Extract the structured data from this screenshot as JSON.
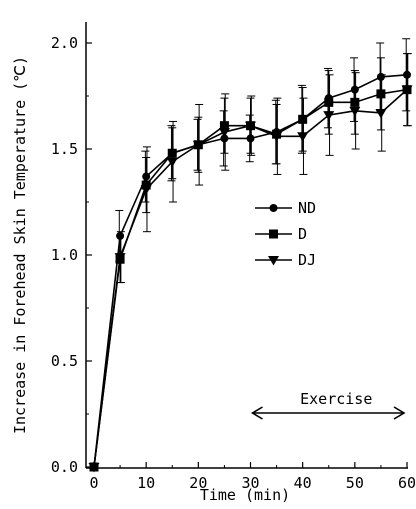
{
  "chart_data": {
    "type": "line",
    "title": "",
    "xlabel": "Time (min)",
    "ylabel": "Increase in Forehead Skin Temperature (℃)",
    "xlim": [
      0,
      60
    ],
    "ylim": [
      0,
      2.1
    ],
    "xticks": [
      "0",
      "10",
      "20",
      "30",
      "40",
      "50",
      "60"
    ],
    "yticks": [
      "0.0",
      "0.5",
      "1.0",
      "1.5",
      "2.0"
    ],
    "x": [
      0,
      5,
      10,
      15,
      20,
      25,
      30,
      35,
      40,
      45,
      50,
      55,
      60
    ],
    "grid": false,
    "legend_position": "center-right",
    "series": [
      {
        "name": "ND",
        "marker": "circle",
        "values": [
          0,
          1.09,
          1.37,
          1.48,
          1.52,
          1.55,
          1.55,
          1.58,
          1.64,
          1.74,
          1.78,
          1.84,
          1.85
        ],
        "errors": [
          0,
          0.12,
          0.12,
          0.13,
          0.12,
          0.13,
          0.11,
          0.15,
          0.16,
          0.14,
          0.15,
          0.16,
          0.17
        ]
      },
      {
        "name": "D",
        "marker": "square",
        "values": [
          0,
          0.98,
          1.33,
          1.48,
          1.52,
          1.61,
          1.61,
          1.57,
          1.64,
          1.72,
          1.72,
          1.76,
          1.78
        ],
        "errors": [
          0,
          0.11,
          0.13,
          0.12,
          0.13,
          0.13,
          0.13,
          0.14,
          0.15,
          0.15,
          0.15,
          0.17,
          0.17
        ]
      },
      {
        "name": "DJ",
        "marker": "triangle-down",
        "values": [
          0,
          0.99,
          1.31,
          1.44,
          1.52,
          1.58,
          1.61,
          1.56,
          1.56,
          1.66,
          1.68,
          1.67,
          1.78
        ],
        "errors": [
          0,
          0.12,
          0.2,
          0.19,
          0.19,
          0.18,
          0.14,
          0.18,
          0.18,
          0.19,
          0.18,
          0.18,
          0.17
        ]
      }
    ],
    "annotation": {
      "label": "Exercise",
      "from_x": 30,
      "to_x": 60
    }
  }
}
